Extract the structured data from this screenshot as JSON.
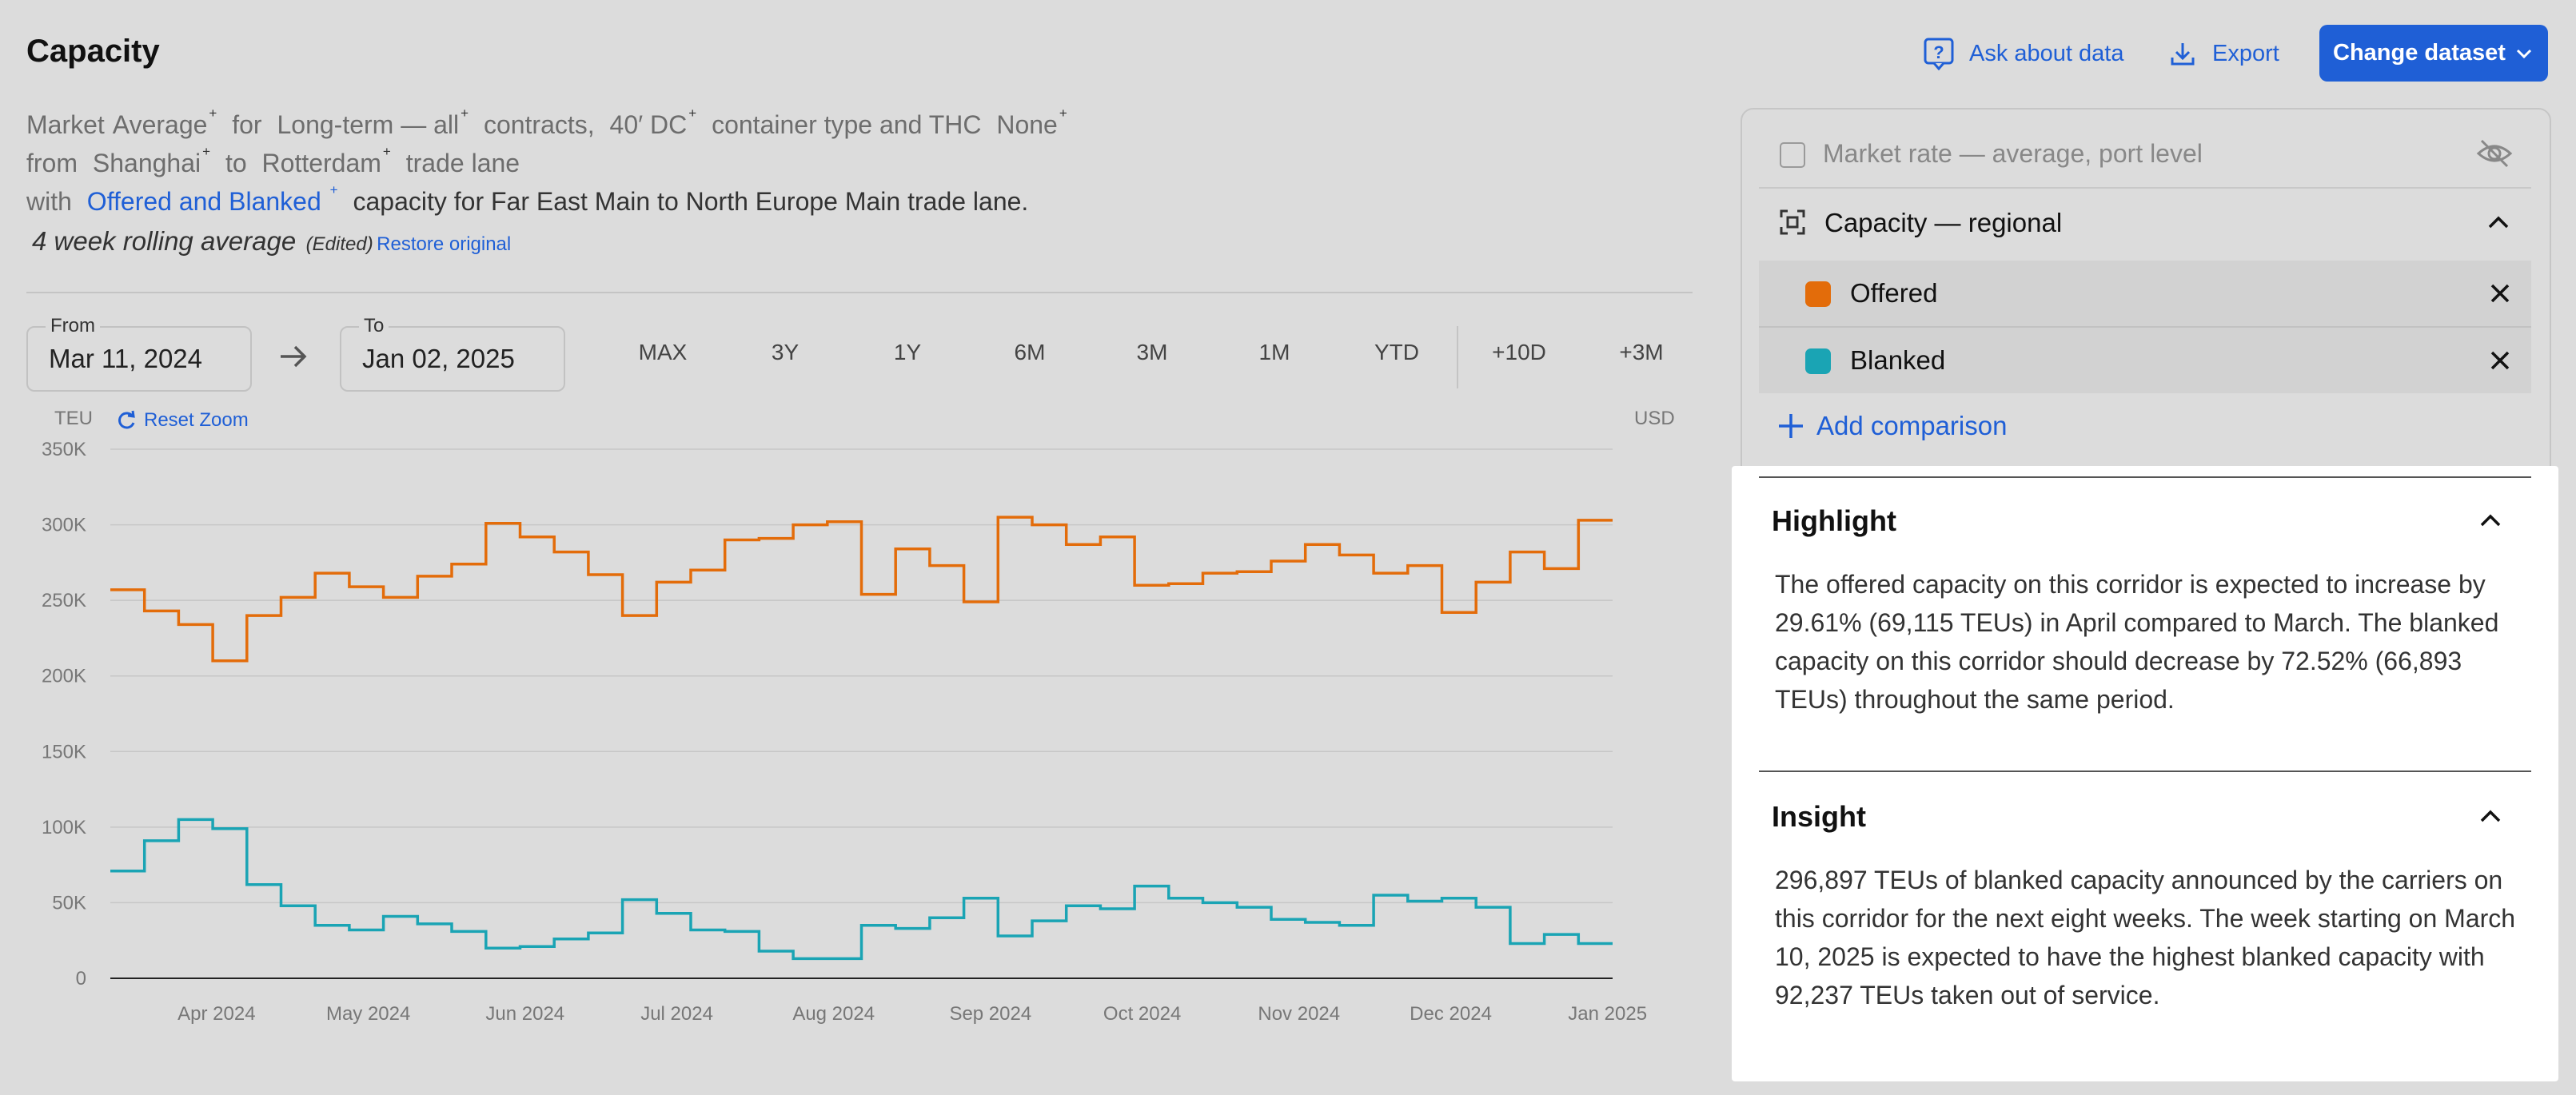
{
  "header": {
    "title": "Capacity",
    "ask_label": "Ask about data",
    "export_label": "Export",
    "change_dataset_label": "Change dataset"
  },
  "description": {
    "l1_market": "Market",
    "l1_average": "Average",
    "l1_for": "for",
    "l1_longterm": "Long-term — all",
    "l1_contracts": "contracts,",
    "l1_container": "40′ DC",
    "l1_type": "container type and THC",
    "l1_none": "None",
    "l2_from": "from",
    "l2_shanghai": "Shanghai",
    "l2_to": "to",
    "l2_rotterdam": "Rotterdam",
    "l2_trade": "trade lane",
    "l3_with": "with",
    "l3_link": "Offered and Blanked",
    "l3_rest": "capacity for Far East Main to North Europe Main trade lane.",
    "rolling": "4 week rolling average",
    "edited": "(Edited)",
    "restore": "Restore original",
    "plus": "+"
  },
  "date_range": {
    "from_label": "From",
    "from_value": "Mar 11, 2024",
    "to_label": "To",
    "to_value": "Jan 02, 2025"
  },
  "range_buttons": [
    "MAX",
    "3Y",
    "1Y",
    "6M",
    "3M",
    "1M",
    "YTD",
    "+10D",
    "+3M"
  ],
  "chart_ui": {
    "y_unit": "TEU",
    "y2_unit": "USD",
    "reset_zoom": "Reset Zoom"
  },
  "chart_data": {
    "type": "line",
    "step": true,
    "x_range": [
      "2024-03-11",
      "2025-01-02"
    ],
    "ylim": [
      0,
      350000
    ],
    "y_ticks": [
      0,
      50000,
      100000,
      150000,
      200000,
      250000,
      300000,
      350000
    ],
    "y_tick_labels": [
      "0",
      "50K",
      "100K",
      "150K",
      "200K",
      "250K",
      "300K",
      "350K"
    ],
    "x_tick_labels": [
      "Apr 2024",
      "May 2024",
      "Jun 2024",
      "Jul 2024",
      "Aug 2024",
      "Sep 2024",
      "Oct 2024",
      "Nov 2024",
      "Dec 2024",
      "Jan 2025"
    ],
    "grid": true,
    "series": [
      {
        "name": "Offered",
        "color": "#e36c0a",
        "values": [
          257000,
          243000,
          234000,
          210000,
          240000,
          252000,
          268000,
          259000,
          252000,
          266000,
          274000,
          301000,
          292000,
          282000,
          267000,
          240000,
          262000,
          270000,
          290000,
          291000,
          300000,
          302000,
          254000,
          284000,
          273000,
          249000,
          305000,
          300000,
          287000,
          292000,
          260000,
          261000,
          268000,
          269000,
          276000,
          287000,
          280000,
          268000,
          273000,
          242000,
          262000,
          282000,
          271000,
          303000
        ]
      },
      {
        "name": "Blanked",
        "color": "#1aa4b4",
        "values": [
          71000,
          91000,
          105000,
          99000,
          62000,
          48000,
          35000,
          32000,
          41000,
          36000,
          31000,
          20000,
          21000,
          26000,
          30000,
          52000,
          43000,
          32000,
          31000,
          18000,
          13000,
          13000,
          35000,
          33000,
          40000,
          53000,
          28000,
          38000,
          48000,
          46000,
          61000,
          53000,
          50000,
          47000,
          39000,
          37000,
          35000,
          55000,
          51000,
          53000,
          47000,
          23000,
          29000,
          23000
        ]
      }
    ]
  },
  "panel": {
    "market_rate_label": "Market rate — average, port level",
    "capacity_label": "Capacity — regional",
    "offered_label": "Offered",
    "offered_color": "#e36c0a",
    "blanked_label": "Blanked",
    "blanked_color": "#1aa4b4",
    "add_comparison": "Add comparison",
    "highlight_title": "Highlight",
    "highlight_text": "The offered capacity on this corridor is expected to increase by 29.61% (69,115 TEUs) in April compared to March. The blanked capacity on this corridor should decrease by 72.52% (66,893 TEUs) throughout the same period.",
    "insight_title": "Insight",
    "insight_text": "296,897 TEUs of blanked capacity announced by the carriers on this corridor for the next eight weeks. The week starting on March 10, 2025 is expected to have the highest blanked capacity with 92,237 TEUs taken out of service."
  }
}
